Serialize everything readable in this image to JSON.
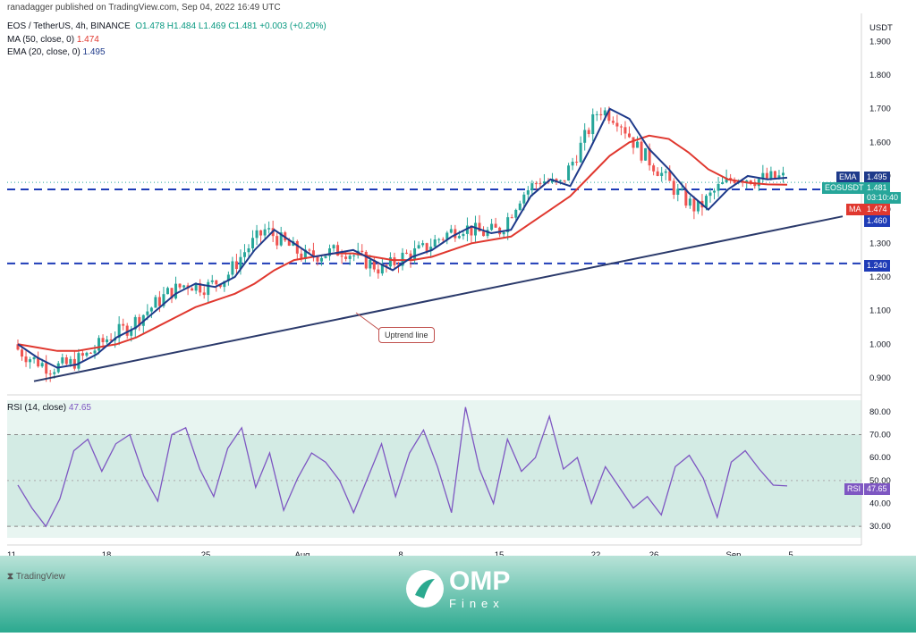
{
  "header": {
    "publisher": "ranadagger published on TradingView.com, Sep 04, 2022 16:49 UTC",
    "symbol": "EOS / TetherUS, 4h, BINANCE",
    "ohlc": "O1.478  H1.484  L1.469  C1.481",
    "change": "+0.003 (+0.20%)",
    "ma_label": "MA (50, close, 0)",
    "ma_value": "1.474",
    "ema_label": "EMA (20, close, 0)",
    "ema_value": "1.495",
    "rsi_label": "RSI (14, close)",
    "rsi_value": "47.65"
  },
  "tags": {
    "ema": "EMA",
    "ema_val": "1.495",
    "eosusdt": "EOSUSDT",
    "price": "1.481",
    "countdown": "03:10:40",
    "ma": "MA",
    "ma_val": "1.474",
    "lvl1": "1.460",
    "lvl2": "1.240",
    "rsi": "RSI",
    "rsi_val": "47.65"
  },
  "annotation": "Uptrend line",
  "branding": {
    "tradingview": "TradingView",
    "logo_text": "OMP",
    "logo_sub": "Finex"
  },
  "colors": {
    "up": "#26a69a",
    "down": "#ef5350",
    "ma": "#e0382f",
    "ema": "#1e3a8a",
    "rsi": "#7e57c2",
    "level": "#1f3cb7",
    "trend": "#2b3a6b"
  },
  "chart_data": [
    {
      "type": "candlestick",
      "title": "EOS / TetherUS, 4h, BINANCE",
      "ylabel": "USDT",
      "ylim": [
        0.86,
        1.97
      ],
      "y_ticks": [
        "0.900",
        "1.000",
        "1.100",
        "1.200",
        "1.300",
        "1.400",
        "1.500",
        "1.600",
        "1.700",
        "1.800",
        "1.900"
      ],
      "x_ticks": [
        "11",
        "18",
        "25",
        "Aug",
        "8",
        "15",
        "22",
        "26",
        "Sep",
        "5"
      ],
      "series": [
        {
          "name": "EMA (20, close, 0)",
          "values": [
            1.0,
            0.96,
            0.93,
            0.94,
            0.97,
            1.02,
            1.05,
            1.1,
            1.15,
            1.18,
            1.17,
            1.2,
            1.28,
            1.34,
            1.3,
            1.26,
            1.27,
            1.28,
            1.25,
            1.22,
            1.26,
            1.28,
            1.32,
            1.35,
            1.33,
            1.34,
            1.44,
            1.49,
            1.47,
            1.58,
            1.7,
            1.67,
            1.58,
            1.52,
            1.45,
            1.4,
            1.46,
            1.5,
            1.49,
            1.495
          ]
        },
        {
          "name": "MA (50, close, 0)",
          "values": [
            1.0,
            0.99,
            0.98,
            0.98,
            0.99,
            1.0,
            1.02,
            1.05,
            1.08,
            1.11,
            1.13,
            1.15,
            1.18,
            1.22,
            1.25,
            1.26,
            1.27,
            1.27,
            1.26,
            1.25,
            1.25,
            1.26,
            1.28,
            1.3,
            1.31,
            1.32,
            1.36,
            1.4,
            1.44,
            1.5,
            1.56,
            1.6,
            1.62,
            1.61,
            1.57,
            1.52,
            1.49,
            1.48,
            1.475,
            1.474
          ]
        }
      ],
      "levels": [
        1.46,
        1.24
      ],
      "uptrend_line": [
        [
          0,
          0.89
        ],
        [
          39,
          1.38
        ]
      ],
      "last_price": 1.481
    },
    {
      "type": "line",
      "title": "RSI (14, close)",
      "ylim": [
        25,
        85
      ],
      "y_ticks": [
        "30.00",
        "40.00",
        "50.00",
        "60.00",
        "70.00",
        "80.00"
      ],
      "bands": [
        70,
        30
      ],
      "midline": 50,
      "series": [
        {
          "name": "RSI (14, close)",
          "values": [
            48,
            38,
            30,
            42,
            63,
            68,
            54,
            66,
            70,
            52,
            41,
            70,
            73,
            55,
            43,
            64,
            73,
            47,
            62,
            37,
            51,
            62,
            58,
            50,
            36,
            51,
            66,
            43,
            62,
            72,
            56,
            36,
            82,
            55,
            40,
            68,
            54,
            60,
            78,
            55,
            60,
            40,
            56,
            47,
            38,
            43,
            35,
            56,
            61,
            51,
            34,
            58,
            63,
            55,
            48,
            47.65
          ]
        }
      ],
      "last_value": 47.65
    }
  ]
}
